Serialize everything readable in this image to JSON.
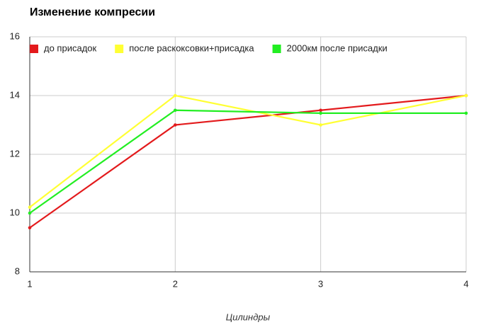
{
  "chart_data": {
    "type": "line",
    "title": "Изменение компресии",
    "xlabel": "Цилиндры",
    "x": [
      1,
      2,
      3,
      4
    ],
    "xlim": [
      1,
      4
    ],
    "xticks": [
      1,
      2,
      3,
      4
    ],
    "ylim": [
      8,
      16
    ],
    "yticks": [
      8,
      10,
      12,
      14,
      16
    ],
    "grid": true,
    "legend": "top-left",
    "series": [
      {
        "name": "до присадок",
        "color": "#e31a1c",
        "values": [
          9.5,
          13,
          13.5,
          14
        ]
      },
      {
        "name": "после раскоксовки+присадка",
        "color": "#ffff33",
        "values": [
          10.2,
          14,
          13,
          14
        ]
      },
      {
        "name": "2000км после присадки",
        "color": "#22ee22",
        "values": [
          10,
          13.5,
          13.4,
          13.4
        ]
      }
    ]
  }
}
